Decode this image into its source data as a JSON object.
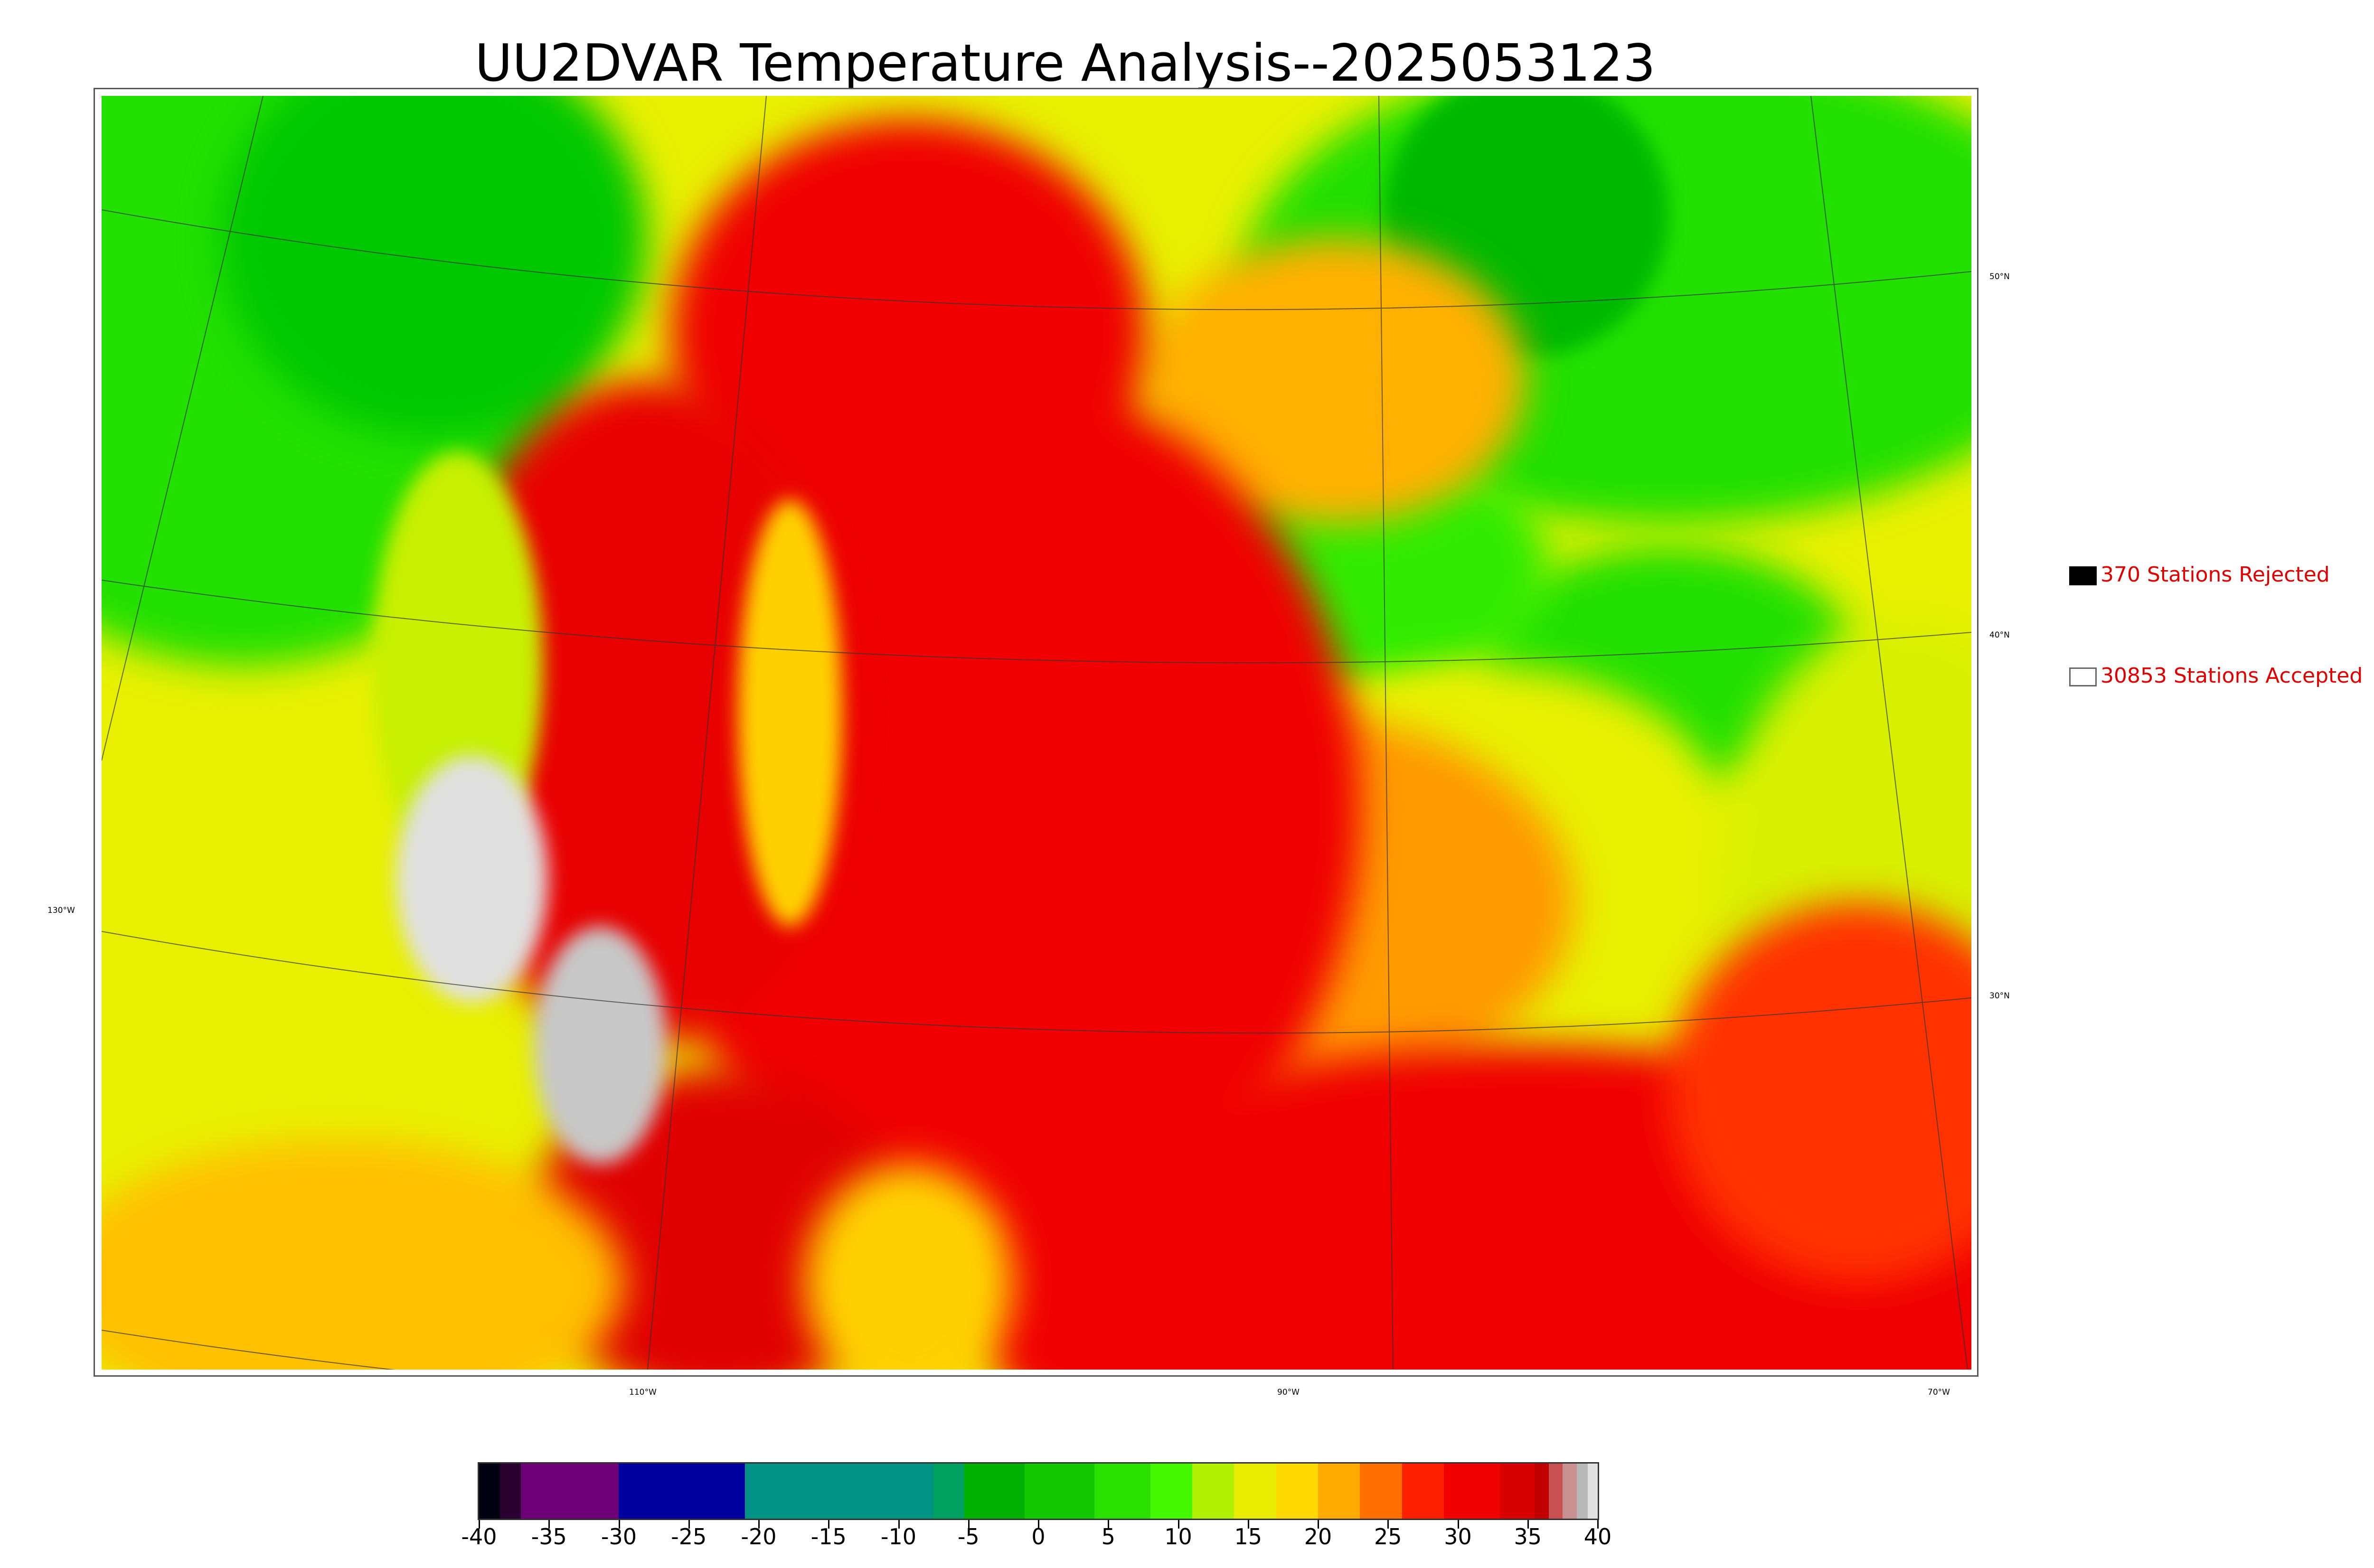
{
  "title": "UU2DVAR Temperature Analysis--2025053123",
  "map": {
    "graticule_labels": {
      "lat_50": "50°N",
      "lat_40": "40°N",
      "lat_30": "30°N",
      "lon_130": "130°W",
      "lon_110": "110°W",
      "lon_90": "90°W",
      "lon_70": "70°W"
    },
    "field": "temperature analysis over CONUS with station observations overlaid",
    "colors": {
      "cold_green": "#00c800",
      "green": "#22e000",
      "yellow": "#e8f000",
      "orange": "#ff9a00",
      "red": "#f00000",
      "deep_red": "#d80000",
      "grey_high": "#b8b8b8",
      "station_accepted": "#ffffff",
      "station_rejected": "#000000"
    }
  },
  "legend": {
    "rejected_label": "370 Stations Rejected",
    "accepted_label": "30853 Stations Accepted"
  },
  "colorbar": {
    "tick_labels": [
      "-40",
      "-35",
      "-30",
      "-25",
      "-20",
      "-15",
      "-10",
      "-5",
      "0",
      "5",
      "10",
      "15",
      "20",
      "25",
      "30",
      "35",
      "40"
    ],
    "segments": [
      {
        "from": -40,
        "to": -38.5,
        "color": "#000010"
      },
      {
        "from": -38.5,
        "to": -37,
        "color": "#2a0030"
      },
      {
        "from": -37,
        "to": -30,
        "color": "#6e0078"
      },
      {
        "from": -30,
        "to": -21,
        "color": "#0000a0"
      },
      {
        "from": -21,
        "to": -7.5,
        "color": "#009282"
      },
      {
        "from": -7.5,
        "to": -5.3,
        "color": "#00a060"
      },
      {
        "from": -5.3,
        "to": -1,
        "color": "#00b000"
      },
      {
        "from": -1,
        "to": 4,
        "color": "#14c800"
      },
      {
        "from": 4,
        "to": 8,
        "color": "#2ae000"
      },
      {
        "from": 8,
        "to": 11,
        "color": "#44f800"
      },
      {
        "from": 11,
        "to": 14,
        "color": "#b0f000"
      },
      {
        "from": 14,
        "to": 17,
        "color": "#e8ec00"
      },
      {
        "from": 17,
        "to": 20,
        "color": "#ffd800"
      },
      {
        "from": 20,
        "to": 23,
        "color": "#ffaa00"
      },
      {
        "from": 23,
        "to": 26,
        "color": "#ff7000"
      },
      {
        "from": 26,
        "to": 29,
        "color": "#ff2000"
      },
      {
        "from": 29,
        "to": 33,
        "color": "#f00000"
      },
      {
        "from": 33,
        "to": 35.5,
        "color": "#d80000"
      },
      {
        "from": 35.5,
        "to": 36.5,
        "color": "#c00000"
      },
      {
        "from": 36.5,
        "to": 37.5,
        "color": "#c85050"
      },
      {
        "from": 37.5,
        "to": 38.5,
        "color": "#c89090"
      },
      {
        "from": 38.5,
        "to": 39.3,
        "color": "#b8b8b8"
      },
      {
        "from": 39.3,
        "to": 40,
        "color": "#e0e0e0"
      }
    ]
  }
}
